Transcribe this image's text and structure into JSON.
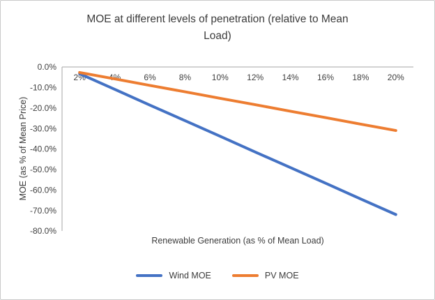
{
  "figure": {
    "border_color": "#c9c9c9"
  },
  "chart_data": {
    "type": "line",
    "title": "MOE at different levels of penetration (relative to Mean Load)",
    "title_lines": [
      "MOE at different levels of penetration (relative to Mean",
      "Load)"
    ],
    "xlabel": "Renewable Generation (as % of Mean Load)",
    "ylabel": "MOE (as % of Mean Price)",
    "categories": [
      "2%",
      "4%",
      "6%",
      "8%",
      "10%",
      "12%",
      "14%",
      "16%",
      "18%",
      "20%"
    ],
    "y_ticks": [
      "0.0%",
      "-10.0%",
      "-20.0%",
      "-30.0%",
      "-40.0%",
      "-50.0%",
      "-60.0%",
      "-70.0%",
      "-80.0%"
    ],
    "ylim": [
      -80,
      0
    ],
    "grid": false,
    "legend_position": "bottom",
    "axis_color": "#a6a6a6",
    "text_color": "#3f3f3f",
    "series": [
      {
        "name": "Wind MOE",
        "color": "#4472C4",
        "values": [
          -3.3,
          -10.9,
          -18.6,
          -26.2,
          -33.8,
          -41.5,
          -49.1,
          -56.7,
          -64.4,
          -72.0
        ]
      },
      {
        "name": "PV MOE",
        "color": "#ED7D31",
        "values": [
          -2.7,
          -5.8,
          -9.0,
          -12.1,
          -15.3,
          -18.4,
          -21.6,
          -24.7,
          -27.9,
          -31.0
        ]
      }
    ]
  }
}
